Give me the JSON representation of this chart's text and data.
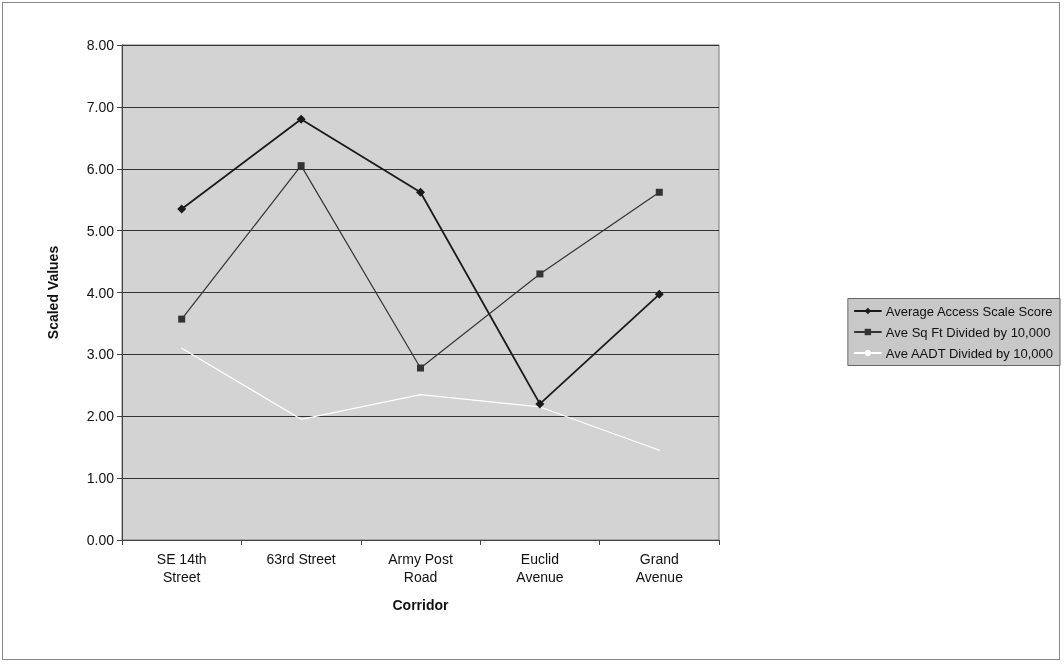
{
  "chart_data": {
    "type": "line",
    "xlabel": "Corridor",
    "ylabel": "Scaled Values",
    "categories": [
      "SE 14th\nStreet",
      "63rd Street",
      "Army Post\nRoad",
      "Euclid\nAvenue",
      "Grand\nAvenue"
    ],
    "series": [
      {
        "name": "Average Access Scale Score",
        "color": "#1a1a1a",
        "marker": "diamond",
        "values": [
          5.35,
          6.8,
          5.62,
          2.2,
          3.97
        ]
      },
      {
        "name": "Ave Sq Ft Divided by 10,000",
        "color": "#333333",
        "marker": "square",
        "values": [
          3.57,
          6.05,
          2.78,
          4.3,
          5.62
        ]
      },
      {
        "name": "Ave AADT Divided by 10,000",
        "color": "#ffffff",
        "marker": "none",
        "values": [
          3.1,
          1.95,
          2.35,
          2.15,
          1.45
        ]
      }
    ],
    "ylim": [
      0,
      8
    ],
    "yticks": [
      {
        "value": 0,
        "label": "0.00"
      },
      {
        "value": 1,
        "label": "1.00"
      },
      {
        "value": 2,
        "label": "2.00"
      },
      {
        "value": 3,
        "label": "3.00"
      },
      {
        "value": 4,
        "label": "4.00"
      },
      {
        "value": 5,
        "label": "5.00"
      },
      {
        "value": 6,
        "label": "6.00"
      },
      {
        "value": 7,
        "label": "7.00"
      },
      {
        "value": 8,
        "label": "8.00"
      }
    ],
    "grid": "y",
    "legend": "right",
    "line_style": "solid"
  }
}
